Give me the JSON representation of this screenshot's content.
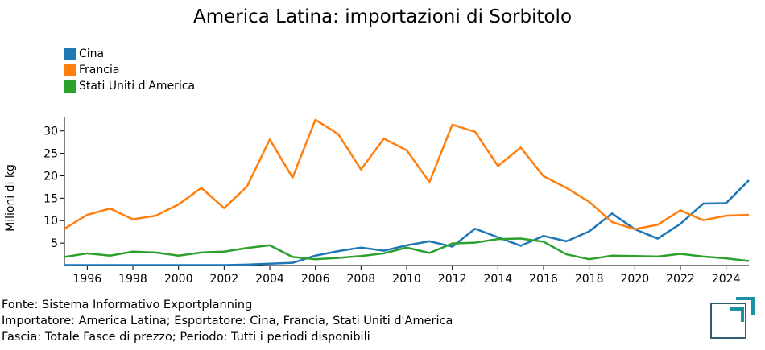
{
  "chart_data": {
    "type": "line",
    "title": "America Latina: importazioni di Sorbitolo",
    "ylabel": "Milioni di kg",
    "xlabel": "",
    "x": [
      1995,
      1996,
      1997,
      1998,
      1999,
      2000,
      2001,
      2002,
      2003,
      2004,
      2005,
      2006,
      2007,
      2008,
      2009,
      2010,
      2011,
      2012,
      2013,
      2014,
      2015,
      2016,
      2017,
      2018,
      2019,
      2020,
      2021,
      2022,
      2023,
      2024,
      2025
    ],
    "xlim": [
      1995,
      2025
    ],
    "ylim": [
      0,
      33
    ],
    "xticks": [
      "1996",
      "1998",
      "2000",
      "2002",
      "2004",
      "2006",
      "2008",
      "2010",
      "2012",
      "2014",
      "2016",
      "2018",
      "2020",
      "2022",
      "2024"
    ],
    "yticks": [
      "5",
      "10",
      "15",
      "20",
      "25",
      "30"
    ],
    "grid": false,
    "legend_placement": "top-left",
    "series": [
      {
        "name": "Cina",
        "color": "#1f77b4",
        "values": [
          0.1,
          0.1,
          0.1,
          0.1,
          0.1,
          0.1,
          0.1,
          0.1,
          0.2,
          0.4,
          0.6,
          2.2,
          3.2,
          4.0,
          3.3,
          4.5,
          5.4,
          4.2,
          8.2,
          6.3,
          4.4,
          6.6,
          5.4,
          7.6,
          11.6,
          8.1,
          6.0,
          9.3,
          13.8,
          13.9,
          19.0
        ]
      },
      {
        "name": "Francia",
        "color": "#ff7f0e",
        "values": [
          8.2,
          11.3,
          12.7,
          10.3,
          11.1,
          13.6,
          17.3,
          12.8,
          17.6,
          28.1,
          19.6,
          32.5,
          29.3,
          21.4,
          28.3,
          25.7,
          18.6,
          31.4,
          29.8,
          22.2,
          26.3,
          19.9,
          17.3,
          14.2,
          9.7,
          8.1,
          9.1,
          12.3,
          10.1,
          11.1,
          11.3
        ]
      },
      {
        "name": "Stati Uniti d'America",
        "color": "#2ca02c",
        "values": [
          1.9,
          2.7,
          2.2,
          3.1,
          2.9,
          2.2,
          2.9,
          3.1,
          3.9,
          4.5,
          1.9,
          1.4,
          1.7,
          2.1,
          2.7,
          4.0,
          2.8,
          4.9,
          5.1,
          5.9,
          6.0,
          5.3,
          2.5,
          1.4,
          2.2,
          2.1,
          2.0,
          2.6,
          2.0,
          1.6,
          1.0
        ]
      }
    ]
  },
  "footer": {
    "source": "Fonte: Sistema Informativo Exportplanning",
    "importer": "Importatore: America Latina; Esportatore: Cina, Francia, Stati Uniti d'America",
    "band": "Fascia: Totale Fasce di prezzo; Periodo: Tutti i periodi disponibili"
  },
  "logo": {
    "accent": "#1a8fa6",
    "frame": "#2f5d6e"
  }
}
